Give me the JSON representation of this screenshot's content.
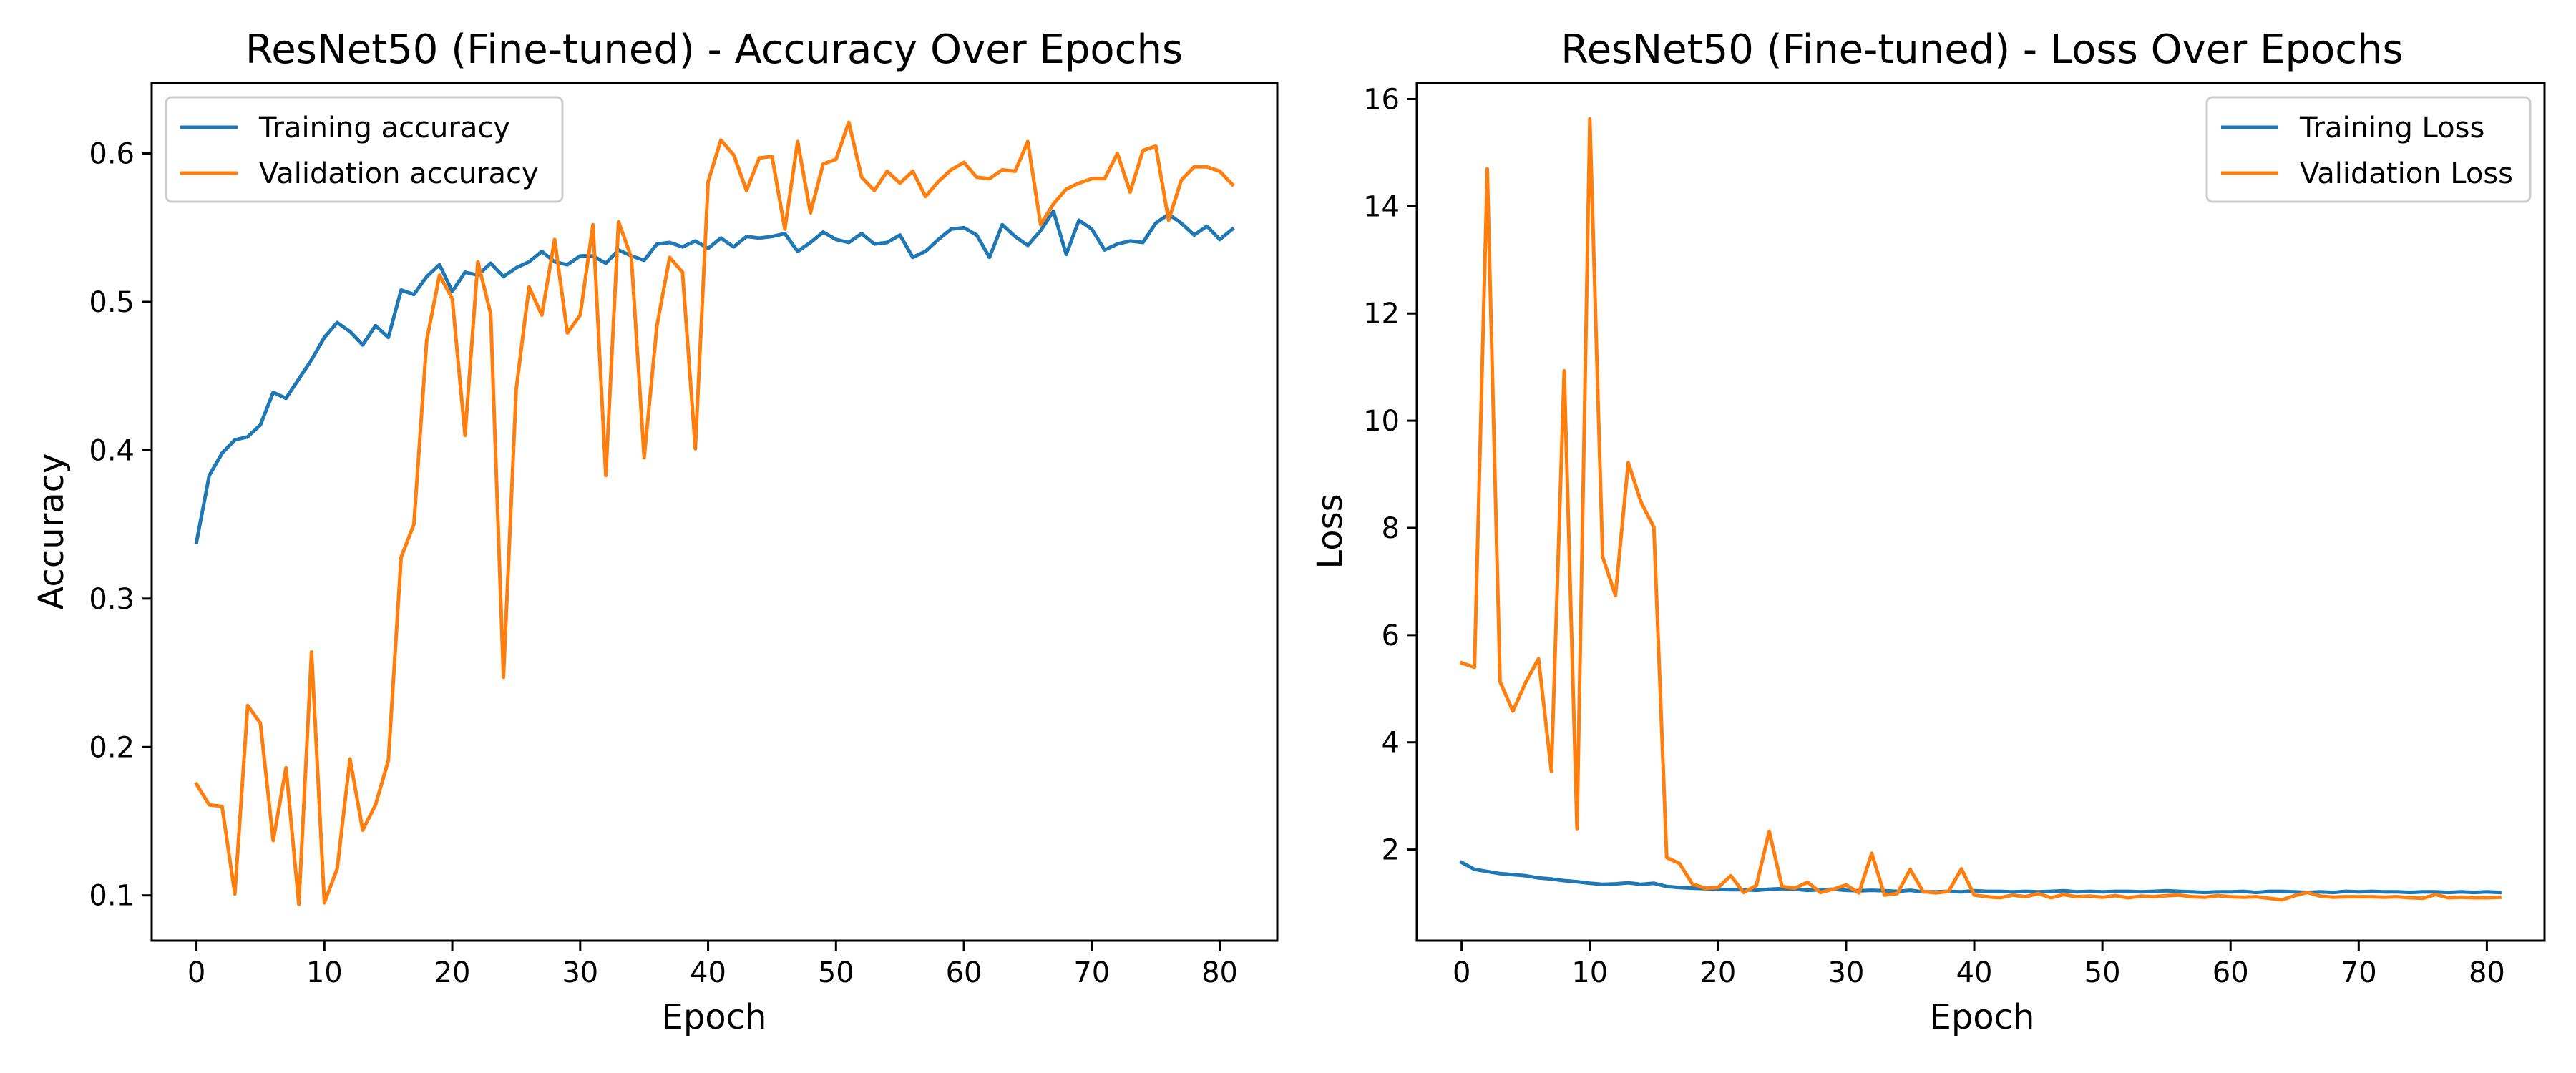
{
  "chart_data": [
    {
      "type": "line",
      "title": "ResNet50 (Fine-tuned) - Accuracy Over Epochs",
      "xlabel": "Epoch",
      "ylabel": "Accuracy",
      "xlim": [
        -3.5,
        84.5
      ],
      "ylim": [
        0.0695,
        0.6475
      ],
      "xticks": [
        0,
        10,
        20,
        30,
        40,
        50,
        60,
        70,
        80
      ],
      "yticks": [
        0.1,
        0.2,
        0.3,
        0.4,
        0.5,
        0.6
      ],
      "ytick_labels": [
        "0.1",
        "0.2",
        "0.3",
        "0.4",
        "0.5",
        "0.6"
      ],
      "legend_position": "top-left",
      "grid": false,
      "series": [
        {
          "name": "Training accuracy",
          "color": "#1f77b4",
          "values": [
            0.338,
            0.383,
            0.398,
            0.407,
            0.409,
            0.417,
            0.439,
            0.435,
            0.448,
            0.461,
            0.476,
            0.486,
            0.48,
            0.471,
            0.484,
            0.476,
            0.508,
            0.505,
            0.517,
            0.525,
            0.507,
            0.52,
            0.518,
            0.526,
            0.517,
            0.523,
            0.527,
            0.534,
            0.527,
            0.525,
            0.531,
            0.531,
            0.526,
            0.535,
            0.531,
            0.528,
            0.539,
            0.54,
            0.537,
            0.541,
            0.536,
            0.543,
            0.537,
            0.544,
            0.543,
            0.544,
            0.546,
            0.534,
            0.54,
            0.547,
            0.542,
            0.54,
            0.546,
            0.539,
            0.54,
            0.545,
            0.53,
            0.534,
            0.542,
            0.549,
            0.55,
            0.545,
            0.53,
            0.552,
            0.544,
            0.538,
            0.548,
            0.561,
            0.532,
            0.555,
            0.549,
            0.535,
            0.539,
            0.541,
            0.54,
            0.553,
            0.559,
            0.553,
            0.545,
            0.551,
            0.542,
            0.549
          ]
        },
        {
          "name": "Validation accuracy",
          "color": "#ff7f0e",
          "values": [
            0.175,
            0.161,
            0.16,
            0.101,
            0.228,
            0.216,
            0.137,
            0.186,
            0.094,
            0.264,
            0.095,
            0.118,
            0.192,
            0.144,
            0.161,
            0.191,
            0.328,
            0.35,
            0.474,
            0.518,
            0.502,
            0.41,
            0.527,
            0.492,
            0.247,
            0.441,
            0.51,
            0.491,
            0.542,
            0.479,
            0.491,
            0.552,
            0.383,
            0.554,
            0.53,
            0.395,
            0.484,
            0.53,
            0.52,
            0.401,
            0.581,
            0.609,
            0.599,
            0.575,
            0.597,
            0.598,
            0.549,
            0.608,
            0.56,
            0.593,
            0.596,
            0.621,
            0.584,
            0.575,
            0.588,
            0.58,
            0.588,
            0.571,
            0.581,
            0.589,
            0.594,
            0.584,
            0.583,
            0.589,
            0.588,
            0.608,
            0.552,
            0.566,
            0.576,
            0.58,
            0.583,
            0.583,
            0.6,
            0.574,
            0.602,
            0.605,
            0.555,
            0.582,
            0.591,
            0.591,
            0.588,
            0.579
          ]
        }
      ]
    },
    {
      "type": "line",
      "title": "ResNet50 (Fine-tuned) - Loss Over Epochs",
      "xlabel": "Epoch",
      "ylabel": "Loss",
      "xlim": [
        -3.5,
        84.5
      ],
      "ylim": [
        0.3,
        16.3
      ],
      "xticks": [
        0,
        10,
        20,
        30,
        40,
        50,
        60,
        70,
        80
      ],
      "yticks": [
        2,
        4,
        6,
        8,
        10,
        12,
        14,
        16
      ],
      "ytick_labels": [
        "2",
        "4",
        "6",
        "8",
        "10",
        "12",
        "14",
        "16"
      ],
      "legend_position": "top-right",
      "grid": false,
      "series": [
        {
          "name": "Training Loss",
          "color": "#1f77b4",
          "values": [
            1.76,
            1.63,
            1.59,
            1.55,
            1.53,
            1.51,
            1.47,
            1.45,
            1.42,
            1.4,
            1.37,
            1.35,
            1.36,
            1.38,
            1.35,
            1.37,
            1.31,
            1.29,
            1.28,
            1.27,
            1.26,
            1.25,
            1.25,
            1.24,
            1.26,
            1.27,
            1.26,
            1.24,
            1.25,
            1.26,
            1.24,
            1.23,
            1.24,
            1.23,
            1.22,
            1.24,
            1.21,
            1.21,
            1.22,
            1.21,
            1.23,
            1.22,
            1.22,
            1.21,
            1.22,
            1.21,
            1.22,
            1.23,
            1.21,
            1.22,
            1.21,
            1.22,
            1.22,
            1.21,
            1.22,
            1.23,
            1.22,
            1.21,
            1.2,
            1.21,
            1.21,
            1.22,
            1.2,
            1.22,
            1.22,
            1.21,
            1.2,
            1.21,
            1.2,
            1.22,
            1.21,
            1.22,
            1.21,
            1.21,
            1.2,
            1.21,
            1.21,
            1.2,
            1.21,
            1.2,
            1.21,
            1.2
          ]
        },
        {
          "name": "Validation Loss",
          "color": "#ff7f0e",
          "values": [
            5.48,
            5.4,
            14.7,
            5.13,
            4.58,
            5.12,
            5.56,
            3.46,
            10.93,
            2.39,
            15.63,
            7.46,
            6.74,
            9.22,
            8.48,
            8.01,
            1.85,
            1.74,
            1.36,
            1.28,
            1.29,
            1.51,
            1.2,
            1.33,
            2.34,
            1.31,
            1.28,
            1.39,
            1.2,
            1.26,
            1.34,
            1.19,
            1.93,
            1.15,
            1.18,
            1.63,
            1.22,
            1.19,
            1.22,
            1.64,
            1.15,
            1.12,
            1.1,
            1.15,
            1.12,
            1.18,
            1.1,
            1.16,
            1.12,
            1.13,
            1.11,
            1.14,
            1.1,
            1.13,
            1.12,
            1.14,
            1.15,
            1.12,
            1.11,
            1.14,
            1.12,
            1.11,
            1.12,
            1.09,
            1.06,
            1.14,
            1.2,
            1.13,
            1.11,
            1.12,
            1.12,
            1.12,
            1.11,
            1.12,
            1.1,
            1.09,
            1.16,
            1.1,
            1.11,
            1.1,
            1.1,
            1.11
          ]
        }
      ]
    }
  ]
}
